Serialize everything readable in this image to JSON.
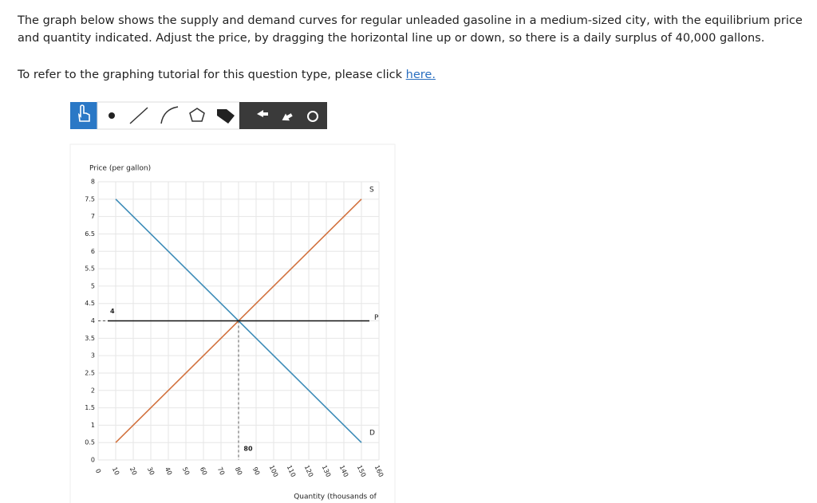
{
  "question": {
    "lines": [
      "The graph below shows the supply and demand curves for regular unleaded gasoline in a medium-sized city, with the equilibrium price",
      "and quantity indicated. Adjust the price, by dragging the horizontal line up or down, so there is a daily surplus of 40,000 gallons."
    ],
    "tutorial_prefix": "To refer to the graphing tutorial for this question type, please click",
    "tutorial_link": "here."
  },
  "chart_data": {
    "type": "line",
    "y_label": "Price (per gallon)",
    "x_label": "Quantity (thousands of",
    "xlim": [
      0,
      160
    ],
    "ylim": [
      0,
      8
    ],
    "xticks": [
      0,
      10,
      20,
      30,
      40,
      50,
      60,
      70,
      80,
      90,
      100,
      110,
      120,
      130,
      140,
      150,
      160
    ],
    "yticks": [
      0,
      0.5,
      1,
      1.5,
      2,
      2.5,
      3,
      3.5,
      4,
      4.5,
      5,
      5.5,
      6,
      6.5,
      7,
      7.5,
      8
    ],
    "grid": true,
    "series": [
      {
        "name": "S",
        "color": "#d2723f",
        "x": [
          10,
          150
        ],
        "values": [
          0.5,
          7.5
        ]
      },
      {
        "name": "D",
        "color": "#3d8cb8",
        "x": [
          10,
          150
        ],
        "values": [
          7.5,
          0.5
        ]
      }
    ],
    "price_line": {
      "name": "P",
      "value": 4,
      "color": "#111111"
    },
    "equilibrium": {
      "x": 80,
      "y": 4
    }
  }
}
